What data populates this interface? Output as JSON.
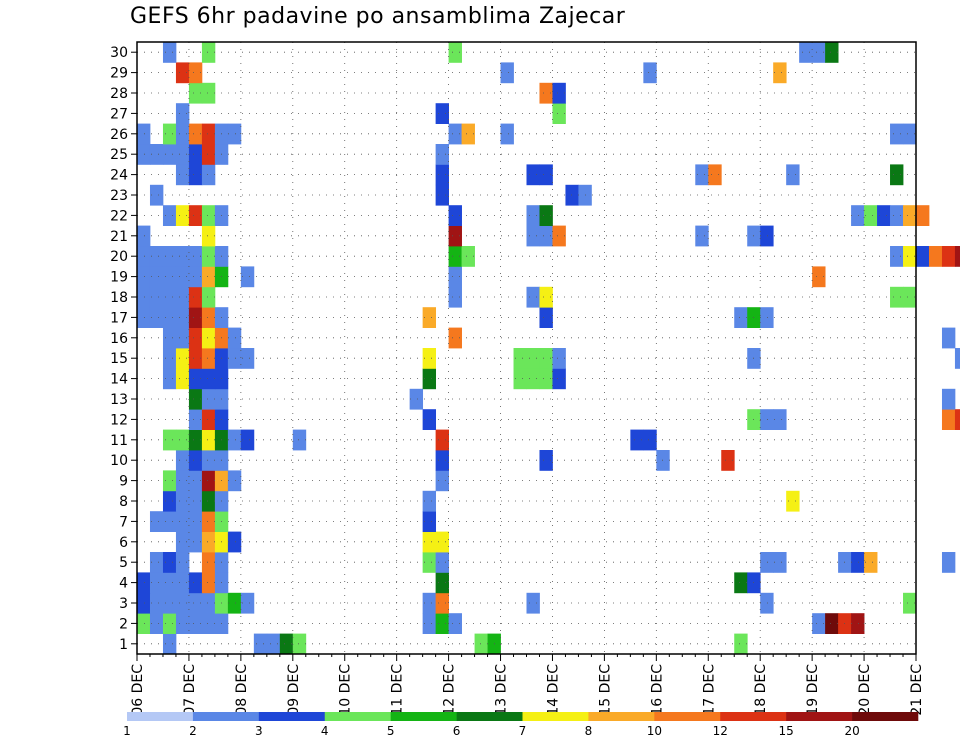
{
  "chart_data": {
    "type": "heatmap",
    "title": "GEFS 6hr padavine po ansamblima Zajecar",
    "x_tick_labels": [
      "06 DEC",
      "07 DEC",
      "08 DEC",
      "09 DEC",
      "10 DEC",
      "11 DEC",
      "12 DEC",
      "13 DEC",
      "14 DEC",
      "15 DEC",
      "16 DEC",
      "17 DEC",
      "18 DEC",
      "19 DEC",
      "20 DEC",
      "21 DEC"
    ],
    "y_tick_labels": [
      "1",
      "2",
      "3",
      "4",
      "5",
      "6",
      "7",
      "8",
      "9",
      "10",
      "11",
      "12",
      "13",
      "14",
      "15",
      "16",
      "17",
      "18",
      "19",
      "20",
      "21",
      "22",
      "23",
      "24",
      "25",
      "26",
      "27",
      "28",
      "29",
      "30"
    ],
    "x_range_days": [
      0,
      15
    ],
    "time_step_hours": 6,
    "ensemble_members": [
      1,
      30
    ],
    "grid": true,
    "colorbar": {
      "labels": [
        "1",
        "2",
        "3",
        "4",
        "5",
        "6",
        "7",
        "8",
        "10",
        "12",
        "15",
        "20"
      ],
      "colors": [
        "#b4c8f5",
        "#5a87e6",
        "#1e46d7",
        "#6be65a",
        "#14b414",
        "#0a7814",
        "#f5f014",
        "#faaa28",
        "#f5781e",
        "#dc3214",
        "#a01414",
        "#6e0a0a"
      ]
    },
    "cells": [
      [
        1,
        2,
        1
      ],
      [
        1,
        9,
        1
      ],
      [
        1,
        10,
        1
      ],
      [
        1,
        11,
        5
      ],
      [
        1,
        12,
        3
      ],
      [
        1,
        26,
        3
      ],
      [
        1,
        27,
        4
      ],
      [
        1,
        46,
        3
      ],
      [
        2,
        0,
        3
      ],
      [
        2,
        1,
        1
      ],
      [
        2,
        2,
        3
      ],
      [
        2,
        3,
        1
      ],
      [
        2,
        4,
        1
      ],
      [
        2,
        5,
        1
      ],
      [
        2,
        6,
        1
      ],
      [
        2,
        22,
        1
      ],
      [
        2,
        23,
        4
      ],
      [
        2,
        24,
        1
      ],
      [
        2,
        52,
        1
      ],
      [
        2,
        53,
        11
      ],
      [
        2,
        54,
        9
      ],
      [
        2,
        55,
        10
      ],
      [
        3,
        0,
        2
      ],
      [
        3,
        1,
        1
      ],
      [
        3,
        2,
        1
      ],
      [
        3,
        3,
        1
      ],
      [
        3,
        4,
        1
      ],
      [
        3,
        5,
        1
      ],
      [
        3,
        6,
        3
      ],
      [
        3,
        7,
        4
      ],
      [
        3,
        8,
        1
      ],
      [
        3,
        22,
        1
      ],
      [
        3,
        23,
        8
      ],
      [
        3,
        30,
        1
      ],
      [
        3,
        48,
        1
      ],
      [
        3,
        59,
        3
      ],
      [
        4,
        0,
        2
      ],
      [
        4,
        1,
        1
      ],
      [
        4,
        2,
        1
      ],
      [
        4,
        3,
        1
      ],
      [
        4,
        4,
        2
      ],
      [
        4,
        5,
        8
      ],
      [
        4,
        6,
        1
      ],
      [
        4,
        23,
        5
      ],
      [
        4,
        46,
        5
      ],
      [
        4,
        47,
        2
      ],
      [
        5,
        1,
        1
      ],
      [
        5,
        2,
        2
      ],
      [
        5,
        3,
        1
      ],
      [
        5,
        5,
        8
      ],
      [
        5,
        6,
        1
      ],
      [
        5,
        22,
        3
      ],
      [
        5,
        23,
        1
      ],
      [
        5,
        48,
        1
      ],
      [
        5,
        49,
        1
      ],
      [
        5,
        54,
        1
      ],
      [
        5,
        55,
        2
      ],
      [
        5,
        56,
        7
      ],
      [
        5,
        62,
        1
      ],
      [
        5,
        66,
        1
      ],
      [
        5,
        70,
        2
      ],
      [
        5,
        71,
        2
      ],
      [
        5,
        72,
        6
      ],
      [
        5,
        73,
        2
      ],
      [
        6,
        3,
        1
      ],
      [
        6,
        4,
        1
      ],
      [
        6,
        5,
        7
      ],
      [
        6,
        6,
        6
      ],
      [
        6,
        7,
        2
      ],
      [
        6,
        22,
        6
      ],
      [
        6,
        23,
        6
      ],
      [
        6,
        68,
        3
      ],
      [
        6,
        69,
        2
      ],
      [
        6,
        70,
        9
      ],
      [
        7,
        1,
        1
      ],
      [
        7,
        2,
        1
      ],
      [
        7,
        3,
        1
      ],
      [
        7,
        4,
        1
      ],
      [
        7,
        5,
        8
      ],
      [
        7,
        6,
        3
      ],
      [
        7,
        22,
        2
      ],
      [
        7,
        70,
        1
      ],
      [
        7,
        71,
        3
      ],
      [
        8,
        2,
        2
      ],
      [
        8,
        3,
        1
      ],
      [
        8,
        4,
        1
      ],
      [
        8,
        5,
        5
      ],
      [
        8,
        6,
        1
      ],
      [
        8,
        22,
        1
      ],
      [
        8,
        50,
        6
      ],
      [
        9,
        2,
        3
      ],
      [
        9,
        3,
        1
      ],
      [
        9,
        4,
        1
      ],
      [
        9,
        5,
        10
      ],
      [
        9,
        6,
        7
      ],
      [
        9,
        7,
        1
      ],
      [
        9,
        23,
        1
      ],
      [
        10,
        3,
        1
      ],
      [
        10,
        4,
        2
      ],
      [
        10,
        5,
        1
      ],
      [
        10,
        6,
        1
      ],
      [
        10,
        23,
        2
      ],
      [
        10,
        31,
        2
      ],
      [
        10,
        40,
        1
      ],
      [
        10,
        45,
        9
      ],
      [
        11,
        2,
        3
      ],
      [
        11,
        3,
        3
      ],
      [
        11,
        4,
        5
      ],
      [
        11,
        5,
        6
      ],
      [
        11,
        6,
        5
      ],
      [
        11,
        7,
        1
      ],
      [
        11,
        8,
        2
      ],
      [
        11,
        12,
        1
      ],
      [
        11,
        23,
        9
      ],
      [
        11,
        38,
        2
      ],
      [
        11,
        39,
        2
      ],
      [
        12,
        4,
        1
      ],
      [
        12,
        5,
        9
      ],
      [
        12,
        6,
        2
      ],
      [
        12,
        22,
        2
      ],
      [
        12,
        47,
        3
      ],
      [
        12,
        48,
        1
      ],
      [
        12,
        49,
        1
      ],
      [
        12,
        62,
        8
      ],
      [
        12,
        63,
        9
      ],
      [
        12,
        64,
        12
      ],
      [
        12,
        65,
        12
      ],
      [
        12,
        66,
        1
      ],
      [
        12,
        67,
        1
      ],
      [
        12,
        68,
        2
      ],
      [
        12,
        69,
        5
      ],
      [
        12,
        70,
        5
      ],
      [
        12,
        71,
        2
      ],
      [
        12,
        72,
        1
      ],
      [
        13,
        4,
        5
      ],
      [
        13,
        5,
        1
      ],
      [
        13,
        6,
        1
      ],
      [
        13,
        21,
        1
      ],
      [
        13,
        62,
        1
      ],
      [
        14,
        2,
        1
      ],
      [
        14,
        3,
        6
      ],
      [
        14,
        4,
        2
      ],
      [
        14,
        5,
        2
      ],
      [
        14,
        6,
        2
      ],
      [
        14,
        22,
        5
      ],
      [
        14,
        29,
        3
      ],
      [
        14,
        30,
        3
      ],
      [
        14,
        31,
        3
      ],
      [
        14,
        32,
        2
      ],
      [
        14,
        65,
        1
      ],
      [
        14,
        66,
        1
      ],
      [
        15,
        2,
        1
      ],
      [
        15,
        3,
        6
      ],
      [
        15,
        4,
        9
      ],
      [
        15,
        5,
        8
      ],
      [
        15,
        6,
        2
      ],
      [
        15,
        7,
        1
      ],
      [
        15,
        8,
        1
      ],
      [
        15,
        22,
        6
      ],
      [
        15,
        29,
        3
      ],
      [
        15,
        30,
        3
      ],
      [
        15,
        31,
        3
      ],
      [
        15,
        32,
        1
      ],
      [
        15,
        47,
        1
      ],
      [
        15,
        63,
        1
      ],
      [
        15,
        64,
        1
      ],
      [
        15,
        65,
        1
      ],
      [
        15,
        66,
        1
      ],
      [
        16,
        2,
        1
      ],
      [
        16,
        3,
        1
      ],
      [
        16,
        4,
        9
      ],
      [
        16,
        5,
        6
      ],
      [
        16,
        6,
        8
      ],
      [
        16,
        7,
        1
      ],
      [
        16,
        24,
        8
      ],
      [
        16,
        62,
        1
      ],
      [
        16,
        66,
        1
      ],
      [
        16,
        71,
        10
      ],
      [
        16,
        72,
        4
      ],
      [
        16,
        73,
        1
      ],
      [
        17,
        0,
        1
      ],
      [
        17,
        1,
        1
      ],
      [
        17,
        2,
        1
      ],
      [
        17,
        3,
        1
      ],
      [
        17,
        4,
        10
      ],
      [
        17,
        5,
        8
      ],
      [
        17,
        6,
        1
      ],
      [
        17,
        22,
        7
      ],
      [
        17,
        31,
        2
      ],
      [
        17,
        46,
        1
      ],
      [
        17,
        47,
        4
      ],
      [
        17,
        48,
        1
      ],
      [
        17,
        71,
        2
      ],
      [
        18,
        0,
        1
      ],
      [
        18,
        1,
        1
      ],
      [
        18,
        2,
        1
      ],
      [
        18,
        3,
        1
      ],
      [
        18,
        4,
        9
      ],
      [
        18,
        5,
        3
      ],
      [
        18,
        24,
        1
      ],
      [
        18,
        30,
        1
      ],
      [
        18,
        31,
        6
      ],
      [
        18,
        58,
        3
      ],
      [
        18,
        59,
        3
      ],
      [
        18,
        71,
        1
      ],
      [
        19,
        0,
        1
      ],
      [
        19,
        1,
        1
      ],
      [
        19,
        2,
        1
      ],
      [
        19,
        3,
        1
      ],
      [
        19,
        4,
        1
      ],
      [
        19,
        5,
        7
      ],
      [
        19,
        6,
        4
      ],
      [
        19,
        8,
        1
      ],
      [
        19,
        24,
        1
      ],
      [
        19,
        52,
        8
      ],
      [
        20,
        0,
        1
      ],
      [
        20,
        1,
        1
      ],
      [
        20,
        2,
        1
      ],
      [
        20,
        3,
        1
      ],
      [
        20,
        4,
        1
      ],
      [
        20,
        5,
        3
      ],
      [
        20,
        6,
        1
      ],
      [
        20,
        24,
        4
      ],
      [
        20,
        25,
        3
      ],
      [
        20,
        58,
        1
      ],
      [
        20,
        59,
        6
      ],
      [
        20,
        60,
        2
      ],
      [
        20,
        61,
        8
      ],
      [
        20,
        62,
        9
      ],
      [
        20,
        63,
        10
      ],
      [
        20,
        64,
        11
      ],
      [
        20,
        65,
        7
      ],
      [
        21,
        0,
        1
      ],
      [
        21,
        5,
        6
      ],
      [
        21,
        24,
        10
      ],
      [
        21,
        30,
        1
      ],
      [
        21,
        31,
        1
      ],
      [
        21,
        32,
        8
      ],
      [
        21,
        43,
        1
      ],
      [
        21,
        47,
        1
      ],
      [
        21,
        48,
        2
      ],
      [
        22,
        2,
        1
      ],
      [
        22,
        3,
        6
      ],
      [
        22,
        4,
        9
      ],
      [
        22,
        5,
        3
      ],
      [
        22,
        6,
        1
      ],
      [
        22,
        24,
        2
      ],
      [
        22,
        30,
        1
      ],
      [
        22,
        31,
        5
      ],
      [
        22,
        55,
        1
      ],
      [
        22,
        56,
        3
      ],
      [
        22,
        57,
        2
      ],
      [
        22,
        58,
        1
      ],
      [
        22,
        59,
        7
      ],
      [
        22,
        60,
        8
      ],
      [
        22,
        67,
        5
      ],
      [
        22,
        68,
        8
      ],
      [
        22,
        69,
        2
      ],
      [
        23,
        1,
        1
      ],
      [
        23,
        23,
        2
      ],
      [
        23,
        33,
        2
      ],
      [
        23,
        34,
        1
      ],
      [
        23,
        67,
        1
      ],
      [
        24,
        3,
        1
      ],
      [
        24,
        4,
        2
      ],
      [
        24,
        5,
        1
      ],
      [
        24,
        23,
        2
      ],
      [
        24,
        30,
        2
      ],
      [
        24,
        31,
        2
      ],
      [
        24,
        43,
        1
      ],
      [
        24,
        44,
        8
      ],
      [
        24,
        50,
        1
      ],
      [
        24,
        58,
        5
      ],
      [
        24,
        64,
        3
      ],
      [
        24,
        66,
        2
      ],
      [
        24,
        67,
        7
      ],
      [
        24,
        68,
        10
      ],
      [
        25,
        0,
        1
      ],
      [
        25,
        1,
        1
      ],
      [
        25,
        2,
        1
      ],
      [
        25,
        3,
        1
      ],
      [
        25,
        4,
        2
      ],
      [
        25,
        5,
        9
      ],
      [
        25,
        6,
        1
      ],
      [
        25,
        23,
        1
      ],
      [
        25,
        75,
        5
      ],
      [
        26,
        0,
        1
      ],
      [
        26,
        2,
        3
      ],
      [
        26,
        3,
        1
      ],
      [
        26,
        4,
        8
      ],
      [
        26,
        5,
        9
      ],
      [
        26,
        6,
        1
      ],
      [
        26,
        7,
        1
      ],
      [
        26,
        24,
        1
      ],
      [
        26,
        25,
        7
      ],
      [
        26,
        28,
        1
      ],
      [
        26,
        58,
        1
      ],
      [
        26,
        59,
        1
      ],
      [
        26,
        72,
        1
      ],
      [
        27,
        3,
        1
      ],
      [
        27,
        23,
        2
      ],
      [
        27,
        32,
        3
      ],
      [
        28,
        4,
        3
      ],
      [
        28,
        5,
        3
      ],
      [
        28,
        31,
        8
      ],
      [
        28,
        32,
        2
      ],
      [
        28,
        68,
        1
      ],
      [
        28,
        69,
        2
      ],
      [
        28,
        70,
        2
      ],
      [
        29,
        3,
        9
      ],
      [
        29,
        4,
        8
      ],
      [
        29,
        28,
        1
      ],
      [
        29,
        39,
        1
      ],
      [
        29,
        49,
        7
      ],
      [
        29,
        72,
        1
      ],
      [
        30,
        2,
        1
      ],
      [
        30,
        5,
        3
      ],
      [
        30,
        24,
        3
      ],
      [
        30,
        51,
        1
      ],
      [
        30,
        52,
        1
      ],
      [
        30,
        53,
        5
      ]
    ]
  }
}
